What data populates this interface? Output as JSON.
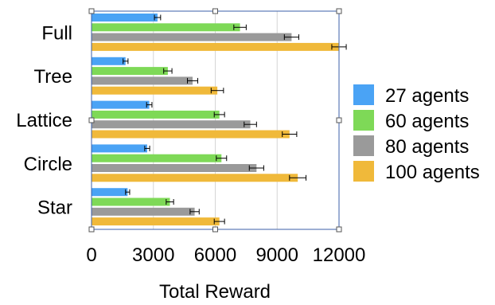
{
  "chart_data": {
    "type": "bar",
    "orientation": "horizontal",
    "categories": [
      "Full",
      "Tree",
      "Lattice",
      "Circle",
      "Star"
    ],
    "series": [
      {
        "name": "27 agents",
        "color": "#4aa3f5",
        "values": [
          3200,
          1650,
          2800,
          2700,
          1750
        ],
        "errors": [
          150,
          120,
          130,
          120,
          100
        ]
      },
      {
        "name": "60 agents",
        "color": "#7ed957",
        "values": [
          7200,
          3700,
          6200,
          6300,
          3800
        ],
        "errors": [
          300,
          200,
          250,
          250,
          180
        ]
      },
      {
        "name": "80 agents",
        "color": "#9a9a9a",
        "values": [
          9700,
          4900,
          7700,
          8000,
          5000
        ],
        "errors": [
          350,
          250,
          300,
          350,
          220
        ]
      },
      {
        "name": "100 agents",
        "color": "#f0b93a",
        "values": [
          12000,
          6100,
          9600,
          10000,
          6200
        ],
        "errors": [
          350,
          300,
          350,
          400,
          250
        ]
      }
    ],
    "xlabel": "Total Reward",
    "ylabel": "",
    "xlim": [
      0,
      12000
    ],
    "xticks": [
      "0",
      "3000",
      "6000",
      "9000",
      "12000"
    ],
    "xtick_values": [
      0,
      3000,
      6000,
      9000,
      12000
    ],
    "grid": "vertical",
    "legend_position": "right"
  }
}
